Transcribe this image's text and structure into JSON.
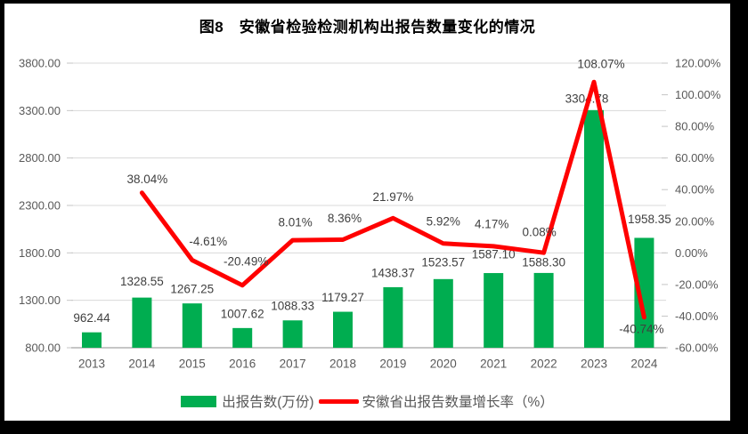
{
  "title": "图8　安徽省检验检测机构出报告数量变化的情况",
  "chart_data": {
    "type": "combo-bar-line",
    "categories": [
      "2013",
      "2014",
      "2015",
      "2016",
      "2017",
      "2018",
      "2019",
      "2020",
      "2021",
      "2022",
      "2023",
      "2024"
    ],
    "series": [
      {
        "name": "出报告数(万份)",
        "type": "bar",
        "axis": "left",
        "color": "#00AD50",
        "values": [
          962.44,
          1328.55,
          1267.25,
          1007.62,
          1088.33,
          1179.27,
          1438.37,
          1523.57,
          1587.1,
          1588.3,
          3304.78,
          1958.35
        ],
        "labels": [
          "962.44",
          "1328.55",
          "1267.25",
          "1007.62",
          "1088.33",
          "1179.27",
          "1438.37",
          "1523.57",
          "1587.10",
          "1588.30",
          "3304.78",
          "1958.35"
        ]
      },
      {
        "name": "安徽省出报告数量增长率（%）",
        "type": "line",
        "axis": "right",
        "color": "#FF0000",
        "values": [
          null,
          38.04,
          -4.61,
          -20.49,
          8.01,
          8.36,
          21.97,
          5.92,
          4.17,
          0.08,
          108.07,
          -40.74
        ],
        "labels": [
          null,
          "38.04%",
          "-4.61%",
          "-20.49%",
          "8.01%",
          "8.36%",
          "21.97%",
          "5.92%",
          "4.17%",
          "0.08%",
          "108.07%",
          "-40.74%"
        ]
      }
    ],
    "left_axis": {
      "min": 800,
      "max": 3800,
      "step": 500,
      "tick_labels": [
        "3800.00",
        "3300.00",
        "2800.00",
        "2300.00",
        "1800.00",
        "1300.00",
        "800.00"
      ]
    },
    "right_axis": {
      "min": -60,
      "max": 120,
      "step": 20,
      "tick_labels": [
        "120.00%",
        "100.00%",
        "80.00%",
        "60.00%",
        "40.00%",
        "20.00%",
        "0.00%",
        "-20.00%",
        "-40.00%",
        "-60.00%"
      ]
    },
    "grid": true,
    "legend": {
      "position": "bottom",
      "items": [
        {
          "label": "出报告数(万份)",
          "marker": "bar",
          "color": "#00AD50"
        },
        {
          "label": "安徽省出报告数量增长率（%）",
          "marker": "line",
          "color": "#FF0000"
        }
      ]
    },
    "colors": {
      "gridline": "#D9D9D9",
      "axis_line": "#C6C6C6",
      "tick_text": "#595959",
      "data_label": "#3F3F3F"
    }
  }
}
